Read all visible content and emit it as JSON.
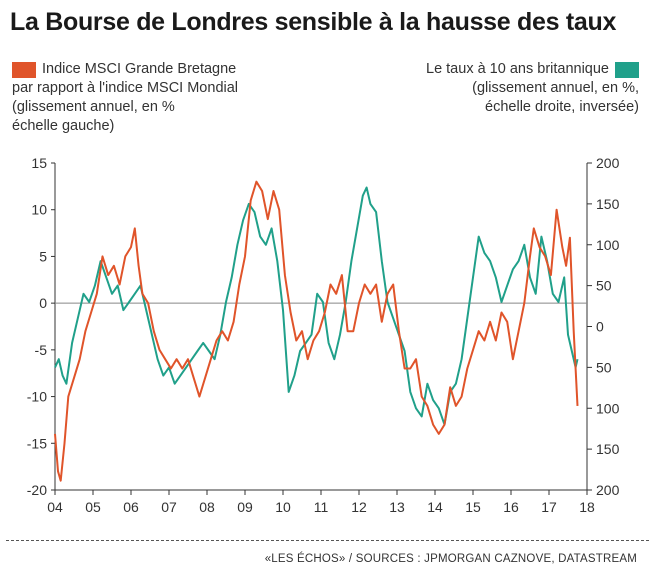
{
  "title": "La Bourse de Londres sensible à la hausse des taux",
  "legend": {
    "left": [
      "Indice MSCI Grande Bretagne",
      "par rapport à l'indice MSCI Mondial",
      "(glissement annuel, en %",
      "échelle gauche)"
    ],
    "right": [
      "Le taux à 10 ans britannique",
      "(glissement annuel, en %,",
      "échelle droite, inversée)"
    ]
  },
  "footer": "«LES ÉCHOS» / SOURCES : JPMORGAN CAZNOVE, DATASTREAM",
  "colors": {
    "msci": "#e0542a",
    "rate": "#20a08a"
  },
  "chart_data": {
    "type": "line",
    "x_ticks": [
      "04",
      "05",
      "06",
      "07",
      "08",
      "09",
      "10",
      "11",
      "12",
      "13",
      "14",
      "15",
      "16",
      "17",
      "18"
    ],
    "x_range": [
      2004,
      2018
    ],
    "y_left": {
      "ticks": [
        "15",
        "10",
        "5",
        "0",
        "-5",
        "-10",
        "-15",
        "-20"
      ],
      "range": [
        -20,
        15
      ]
    },
    "y_right": {
      "ticks": [
        "200",
        "150",
        "100",
        "50",
        "0",
        "50",
        "100",
        "150",
        "200"
      ],
      "range": [
        200,
        -200
      ],
      "inverted": true
    },
    "series": [
      {
        "name": "Indice MSCI Grande Bretagne par rapport à l'indice MSCI Mondial",
        "axis": "left",
        "x": [
          2004.0,
          2004.08,
          2004.15,
          2004.25,
          2004.35,
          2004.5,
          2004.65,
          2004.8,
          2004.95,
          2005.1,
          2005.25,
          2005.4,
          2005.55,
          2005.7,
          2005.85,
          2006.0,
          2006.1,
          2006.2,
          2006.3,
          2006.45,
          2006.6,
          2006.75,
          2006.9,
          2007.05,
          2007.2,
          2007.35,
          2007.5,
          2007.65,
          2007.8,
          2007.95,
          2008.1,
          2008.25,
          2008.4,
          2008.55,
          2008.7,
          2008.85,
          2009.0,
          2009.15,
          2009.3,
          2009.45,
          2009.6,
          2009.75,
          2009.9,
          2010.05,
          2010.2,
          2010.35,
          2010.5,
          2010.65,
          2010.8,
          2010.95,
          2011.1,
          2011.25,
          2011.4,
          2011.55,
          2011.7,
          2011.85,
          2012.0,
          2012.15,
          2012.3,
          2012.45,
          2012.6,
          2012.75,
          2012.9,
          2013.05,
          2013.2,
          2013.35,
          2013.5,
          2013.65,
          2013.8,
          2013.95,
          2014.1,
          2014.25,
          2014.4,
          2014.55,
          2014.7,
          2014.85,
          2015.0,
          2015.15,
          2015.3,
          2015.45,
          2015.6,
          2015.75,
          2015.9,
          2016.05,
          2016.2,
          2016.35,
          2016.5,
          2016.6,
          2016.75,
          2016.9,
          2017.05,
          2017.2,
          2017.35,
          2017.45,
          2017.55,
          2017.65,
          2017.75
        ],
        "values": [
          -14,
          -18,
          -19,
          -15,
          -10,
          -8,
          -6,
          -3,
          -1,
          1,
          5,
          3,
          4,
          2,
          5,
          6,
          8,
          4,
          1,
          0,
          -3,
          -5,
          -6,
          -7,
          -6,
          -7,
          -6,
          -8,
          -10,
          -8,
          -6,
          -4,
          -3,
          -4,
          -2,
          2,
          5,
          11,
          13,
          12,
          9,
          12,
          10,
          3,
          -1,
          -4,
          -3,
          -6,
          -4,
          -3,
          -1,
          2,
          1,
          3,
          -3,
          -3,
          0,
          2,
          1,
          2,
          -2,
          1,
          2,
          -3,
          -7,
          -7,
          -6,
          -10,
          -11,
          -13,
          -14,
          -13,
          -9,
          -11,
          -10,
          -7,
          -5,
          -3,
          -4,
          -2,
          -4,
          -1,
          -2,
          -6,
          -3,
          0,
          5,
          8,
          6,
          5,
          3,
          10,
          6,
          4,
          7,
          -3,
          -11
        ]
      },
      {
        "name": "Le taux à 10 ans britannique",
        "axis": "right",
        "x": [
          2004.0,
          2004.1,
          2004.2,
          2004.3,
          2004.45,
          2004.6,
          2004.75,
          2004.9,
          2005.05,
          2005.2,
          2005.35,
          2005.5,
          2005.65,
          2005.8,
          2005.95,
          2006.1,
          2006.25,
          2006.4,
          2006.55,
          2006.7,
          2006.85,
          2007.0,
          2007.15,
          2007.3,
          2007.45,
          2007.6,
          2007.75,
          2007.9,
          2008.05,
          2008.2,
          2008.35,
          2008.5,
          2008.65,
          2008.8,
          2008.95,
          2009.1,
          2009.25,
          2009.4,
          2009.55,
          2009.7,
          2009.85,
          2010.0,
          2010.15,
          2010.3,
          2010.45,
          2010.6,
          2010.75,
          2010.9,
          2011.05,
          2011.2,
          2011.35,
          2011.5,
          2011.65,
          2011.8,
          2011.95,
          2012.1,
          2012.2,
          2012.3,
          2012.45,
          2012.6,
          2012.75,
          2012.9,
          2013.05,
          2013.2,
          2013.35,
          2013.5,
          2013.65,
          2013.8,
          2013.95,
          2014.1,
          2014.25,
          2014.4,
          2014.55,
          2014.7,
          2014.85,
          2015.0,
          2015.15,
          2015.3,
          2015.45,
          2015.6,
          2015.75,
          2015.9,
          2016.05,
          2016.2,
          2016.35,
          2016.5,
          2016.65,
          2016.8,
          2016.95,
          2017.1,
          2017.25,
          2017.4,
          2017.5,
          2017.6,
          2017.7,
          2017.75
        ],
        "values": [
          -50,
          -40,
          -60,
          -70,
          -20,
          10,
          40,
          30,
          50,
          80,
          60,
          40,
          50,
          20,
          30,
          40,
          50,
          20,
          -10,
          -40,
          -60,
          -50,
          -70,
          -60,
          -50,
          -40,
          -30,
          -20,
          -30,
          -40,
          -10,
          30,
          60,
          100,
          130,
          150,
          140,
          110,
          100,
          120,
          80,
          20,
          -80,
          -60,
          -30,
          -20,
          -10,
          40,
          30,
          -20,
          -40,
          -10,
          30,
          80,
          120,
          160,
          170,
          150,
          140,
          80,
          30,
          10,
          -10,
          -30,
          -80,
          -100,
          -110,
          -70,
          -90,
          -100,
          -120,
          -80,
          -70,
          -40,
          10,
          60,
          110,
          90,
          80,
          60,
          30,
          50,
          70,
          80,
          100,
          60,
          40,
          110,
          80,
          40,
          30,
          60,
          -10,
          -30,
          -50,
          -40
        ]
      }
    ],
    "grid": false
  }
}
